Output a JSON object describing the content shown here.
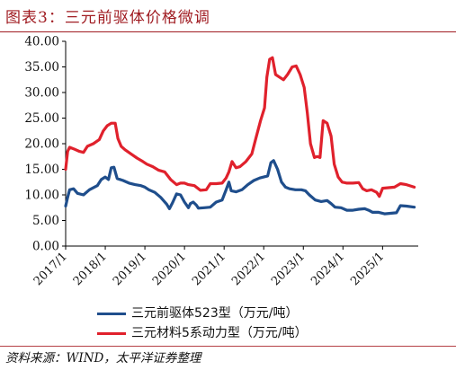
{
  "title": "图表3：三元前驱体价格微调",
  "source": "资料来源：WIND，太平洋证券整理",
  "colors": {
    "title": "#a01c22",
    "series_blue": "#1f4e8c",
    "series_red": "#e0212c"
  },
  "chart_data": {
    "type": "line",
    "title": "",
    "xlabel": "",
    "ylabel": "",
    "ylim": [
      0,
      40
    ],
    "yticks": [
      "0.00",
      "5.00",
      "10.00",
      "15.00",
      "20.00",
      "25.00",
      "30.00",
      "35.00",
      "40.00"
    ],
    "xlim": [
      2017.0,
      2025.9
    ],
    "xticks": [
      {
        "label": "2017/1",
        "x": 2017.0
      },
      {
        "label": "2018/1",
        "x": 2018.0
      },
      {
        "label": "2019/1",
        "x": 2019.0
      },
      {
        "label": "2020/1",
        "x": 2020.0
      },
      {
        "label": "2021/1",
        "x": 2021.0
      },
      {
        "label": "2022/1",
        "x": 2022.0
      },
      {
        "label": "2023/1",
        "x": 2023.0
      },
      {
        "label": "2024/1",
        "x": 2024.0
      },
      {
        "label": "2025/1",
        "x": 2025.0
      }
    ],
    "grid": false,
    "legend": "bottom",
    "series": [
      {
        "name": "三元前驱体523型（万元/吨）",
        "color": "#1f4e8c",
        "points": [
          [
            2017.0,
            7.8
          ],
          [
            2017.05,
            9.5
          ],
          [
            2017.1,
            11.0
          ],
          [
            2017.2,
            11.2
          ],
          [
            2017.3,
            10.3
          ],
          [
            2017.45,
            10.0
          ],
          [
            2017.6,
            11.0
          ],
          [
            2017.8,
            11.8
          ],
          [
            2017.9,
            13.0
          ],
          [
            2018.0,
            13.5
          ],
          [
            2018.08,
            13.0
          ],
          [
            2018.15,
            15.3
          ],
          [
            2018.22,
            15.4
          ],
          [
            2018.3,
            13.2
          ],
          [
            2018.45,
            12.8
          ],
          [
            2018.6,
            12.3
          ],
          [
            2018.75,
            12.0
          ],
          [
            2018.9,
            11.8
          ],
          [
            2019.0,
            11.5
          ],
          [
            2019.1,
            11.0
          ],
          [
            2019.25,
            10.5
          ],
          [
            2019.4,
            9.5
          ],
          [
            2019.55,
            8.2
          ],
          [
            2019.62,
            7.3
          ],
          [
            2019.7,
            8.5
          ],
          [
            2019.8,
            10.2
          ],
          [
            2019.9,
            10.0
          ],
          [
            2020.0,
            8.6
          ],
          [
            2020.1,
            7.5
          ],
          [
            2020.15,
            8.3
          ],
          [
            2020.22,
            8.6
          ],
          [
            2020.3,
            8.0
          ],
          [
            2020.35,
            7.4
          ],
          [
            2020.5,
            7.5
          ],
          [
            2020.65,
            7.6
          ],
          [
            2020.8,
            8.6
          ],
          [
            2020.95,
            9.0
          ],
          [
            2021.05,
            11.0
          ],
          [
            2021.12,
            12.5
          ],
          [
            2021.18,
            10.8
          ],
          [
            2021.3,
            10.6
          ],
          [
            2021.45,
            11.0
          ],
          [
            2021.6,
            12.0
          ],
          [
            2021.75,
            12.8
          ],
          [
            2021.9,
            13.3
          ],
          [
            2022.0,
            13.5
          ],
          [
            2022.1,
            13.7
          ],
          [
            2022.18,
            16.3
          ],
          [
            2022.25,
            16.7
          ],
          [
            2022.35,
            15.0
          ],
          [
            2022.45,
            12.5
          ],
          [
            2022.55,
            11.5
          ],
          [
            2022.65,
            11.2
          ],
          [
            2022.8,
            11.0
          ],
          [
            2022.95,
            11.0
          ],
          [
            2023.05,
            10.8
          ],
          [
            2023.15,
            10.0
          ],
          [
            2023.3,
            9.0
          ],
          [
            2023.45,
            8.7
          ],
          [
            2023.6,
            8.9
          ],
          [
            2023.7,
            8.3
          ],
          [
            2023.8,
            7.6
          ],
          [
            2023.95,
            7.5
          ],
          [
            2024.1,
            7.0
          ],
          [
            2024.25,
            7.0
          ],
          [
            2024.4,
            7.2
          ],
          [
            2024.55,
            7.3
          ],
          [
            2024.65,
            7.0
          ],
          [
            2024.75,
            6.6
          ],
          [
            2024.9,
            6.6
          ],
          [
            2025.05,
            6.3
          ],
          [
            2025.2,
            6.4
          ],
          [
            2025.35,
            6.5
          ],
          [
            2025.45,
            7.9
          ],
          [
            2025.6,
            7.8
          ],
          [
            2025.8,
            7.6
          ]
        ]
      },
      {
        "name": "三元材料5系动力型（万元/吨）",
        "color": "#e0212c",
        "points": [
          [
            2017.0,
            15.0
          ],
          [
            2017.05,
            18.5
          ],
          [
            2017.1,
            19.3
          ],
          [
            2017.2,
            19.0
          ],
          [
            2017.35,
            18.5
          ],
          [
            2017.45,
            18.3
          ],
          [
            2017.55,
            19.5
          ],
          [
            2017.7,
            20.0
          ],
          [
            2017.85,
            20.8
          ],
          [
            2017.95,
            22.5
          ],
          [
            2018.05,
            23.5
          ],
          [
            2018.15,
            24.0
          ],
          [
            2018.25,
            24.0
          ],
          [
            2018.32,
            21.0
          ],
          [
            2018.4,
            19.5
          ],
          [
            2018.5,
            18.8
          ],
          [
            2018.65,
            18.0
          ],
          [
            2018.8,
            17.2
          ],
          [
            2018.95,
            16.5
          ],
          [
            2019.05,
            16.0
          ],
          [
            2019.2,
            15.5
          ],
          [
            2019.35,
            14.8
          ],
          [
            2019.5,
            14.5
          ],
          [
            2019.65,
            13.0
          ],
          [
            2019.8,
            12.0
          ],
          [
            2019.9,
            12.3
          ],
          [
            2020.0,
            12.3
          ],
          [
            2020.1,
            12.0
          ],
          [
            2020.25,
            11.8
          ],
          [
            2020.4,
            10.9
          ],
          [
            2020.55,
            11.0
          ],
          [
            2020.65,
            12.2
          ],
          [
            2020.8,
            12.2
          ],
          [
            2020.95,
            12.3
          ],
          [
            2021.05,
            13.3
          ],
          [
            2021.12,
            14.5
          ],
          [
            2021.2,
            16.5
          ],
          [
            2021.3,
            15.3
          ],
          [
            2021.4,
            15.5
          ],
          [
            2021.55,
            16.5
          ],
          [
            2021.7,
            18.0
          ],
          [
            2021.8,
            21.0
          ],
          [
            2021.92,
            24.5
          ],
          [
            2022.02,
            27.0
          ],
          [
            2022.08,
            33.0
          ],
          [
            2022.15,
            36.5
          ],
          [
            2022.22,
            36.8
          ],
          [
            2022.3,
            33.5
          ],
          [
            2022.4,
            33.0
          ],
          [
            2022.5,
            32.5
          ],
          [
            2022.6,
            33.5
          ],
          [
            2022.72,
            35.0
          ],
          [
            2022.82,
            35.2
          ],
          [
            2022.92,
            33.5
          ],
          [
            2023.02,
            31.0
          ],
          [
            2023.1,
            26.0
          ],
          [
            2023.18,
            20.0
          ],
          [
            2023.28,
            17.3
          ],
          [
            2023.35,
            17.5
          ],
          [
            2023.42,
            17.3
          ],
          [
            2023.5,
            24.5
          ],
          [
            2023.6,
            24.0
          ],
          [
            2023.7,
            21.5
          ],
          [
            2023.78,
            16.0
          ],
          [
            2023.88,
            13.5
          ],
          [
            2023.98,
            12.5
          ],
          [
            2024.1,
            12.3
          ],
          [
            2024.25,
            12.3
          ],
          [
            2024.4,
            12.4
          ],
          [
            2024.5,
            11.2
          ],
          [
            2024.6,
            10.8
          ],
          [
            2024.72,
            11.0
          ],
          [
            2024.85,
            10.5
          ],
          [
            2024.92,
            9.7
          ],
          [
            2025.0,
            11.3
          ],
          [
            2025.15,
            11.4
          ],
          [
            2025.3,
            11.5
          ],
          [
            2025.45,
            12.2
          ],
          [
            2025.6,
            12.0
          ],
          [
            2025.8,
            11.5
          ]
        ]
      }
    ]
  }
}
